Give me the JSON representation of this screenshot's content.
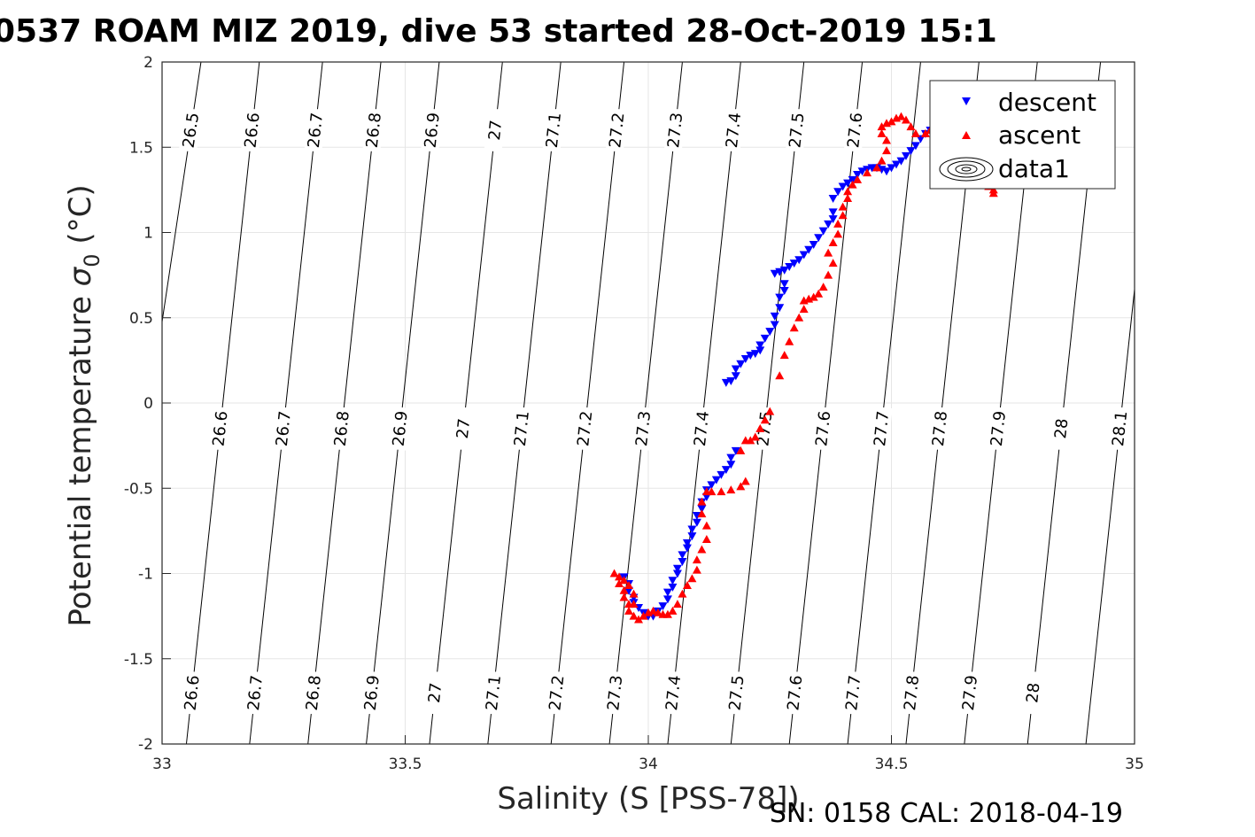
{
  "title": "0537 ROAM MIZ 2019, dive 53 started 28-Oct-2019 15:1",
  "footer": "SN: 0158  CAL: 2018-04-19",
  "chart_data": {
    "type": "scatter",
    "xlabel": "Salinity (S [PSS-78])",
    "ylabel_main": "Potential temperature ",
    "ylabel_sigma": "σ",
    "ylabel_sub": "0",
    "ylabel_unit": " (°C)",
    "xlim": [
      33,
      35
    ],
    "ylim": [
      -2,
      2
    ],
    "xticks": [
      "33",
      "33.5",
      "34",
      "34.5",
      "35"
    ],
    "yticks": [
      "2",
      "1.5",
      "1",
      "0.5",
      "0",
      "-0.5",
      "-1",
      "-1.5",
      "-2"
    ],
    "grid": true,
    "legend_position": "top-right",
    "legend": [
      "descent",
      "ascent",
      "data1"
    ],
    "colors": {
      "descent": "#0000ff",
      "ascent": "#ff0000",
      "contour": "#000000",
      "grid": "#e6e6e6"
    },
    "contours": [
      {
        "level": "26.5",
        "s_at_tmin": 32.87,
        "s_at_tmax": 33.08
      },
      {
        "level": "26.6",
        "s_at_tmin": 33.05,
        "s_at_tmax": 33.2
      },
      {
        "level": "26.7",
        "s_at_tmin": 33.18,
        "s_at_tmax": 33.33
      },
      {
        "level": "26.8",
        "s_at_tmin": 33.3,
        "s_at_tmax": 33.45
      },
      {
        "level": "26.9",
        "s_at_tmin": 33.42,
        "s_at_tmax": 33.57
      },
      {
        "level": "27",
        "s_at_tmin": 33.55,
        "s_at_tmax": 33.7
      },
      {
        "level": "27.1",
        "s_at_tmin": 33.67,
        "s_at_tmax": 33.82
      },
      {
        "level": "27.2",
        "s_at_tmin": 33.8,
        "s_at_tmax": 33.95
      },
      {
        "level": "27.3",
        "s_at_tmin": 33.92,
        "s_at_tmax": 34.07
      },
      {
        "level": "27.4",
        "s_at_tmin": 34.04,
        "s_at_tmax": 34.19
      },
      {
        "level": "27.5",
        "s_at_tmin": 34.17,
        "s_at_tmax": 34.32
      },
      {
        "level": "27.6",
        "s_at_tmin": 34.29,
        "s_at_tmax": 34.44
      },
      {
        "level": "27.7",
        "s_at_tmin": 34.41,
        "s_at_tmax": 34.56
      },
      {
        "level": "27.8",
        "s_at_tmin": 34.53,
        "s_at_tmax": 34.68
      },
      {
        "level": "27.9",
        "s_at_tmin": 34.65,
        "s_at_tmax": 34.8
      },
      {
        "level": "28",
        "s_at_tmin": 34.78,
        "s_at_tmax": 34.93
      },
      {
        "level": "28.1",
        "s_at_tmin": 34.9,
        "s_at_tmax": 35.05
      }
    ],
    "contour_label_rows": [
      {
        "temperature": 1.6,
        "levels": [
          "26.5",
          "26.6",
          "26.7",
          "26.8",
          "26.9",
          "27",
          "27.1",
          "27.2",
          "27.3",
          "27.4",
          "27.5",
          "27.6",
          "28"
        ]
      },
      {
        "temperature": 0.0,
        "levels": [
          "26.5"
        ]
      },
      {
        "temperature": -0.15,
        "levels": [
          "26.6",
          "26.7",
          "26.8",
          "26.9",
          "27",
          "27.1",
          "27.2",
          "27.3",
          "27.4",
          "27.5",
          "27.6",
          "27.7",
          "27.8",
          "27.9",
          "28",
          "28.1"
        ]
      },
      {
        "temperature": -1.7,
        "levels": [
          "26.6",
          "26.7",
          "26.8",
          "26.9",
          "27",
          "27.1",
          "27.2",
          "27.3",
          "27.4",
          "27.5",
          "27.6",
          "27.7",
          "27.8",
          "27.9",
          "28"
        ]
      }
    ],
    "series": [
      {
        "name": "descent",
        "marker": "triangle-down",
        "points": [
          [
            33.95,
            -1.02
          ],
          [
            33.96,
            -1.06
          ],
          [
            33.96,
            -1.1
          ],
          [
            33.97,
            -1.14
          ],
          [
            33.97,
            -1.17
          ],
          [
            33.98,
            -1.2
          ],
          [
            33.99,
            -1.23
          ],
          [
            34.0,
            -1.25
          ],
          [
            34.01,
            -1.25
          ],
          [
            34.02,
            -1.22
          ],
          [
            34.03,
            -1.19
          ],
          [
            34.04,
            -1.15
          ],
          [
            34.04,
            -1.11
          ],
          [
            34.05,
            -1.08
          ],
          [
            34.05,
            -1.04
          ],
          [
            34.06,
            -1.0
          ],
          [
            34.06,
            -0.97
          ],
          [
            34.07,
            -0.93
          ],
          [
            34.07,
            -0.89
          ],
          [
            34.08,
            -0.85
          ],
          [
            34.08,
            -0.82
          ],
          [
            34.09,
            -0.78
          ],
          [
            34.09,
            -0.74
          ],
          [
            34.1,
            -0.7
          ],
          [
            34.1,
            -0.66
          ],
          [
            34.11,
            -0.62
          ],
          [
            34.11,
            -0.58
          ],
          [
            34.12,
            -0.55
          ],
          [
            34.12,
            -0.51
          ],
          [
            34.13,
            -0.48
          ],
          [
            34.14,
            -0.45
          ],
          [
            34.15,
            -0.42
          ],
          [
            34.16,
            -0.39
          ],
          [
            34.17,
            -0.36
          ],
          [
            34.17,
            -0.32
          ],
          [
            34.18,
            -0.28
          ],
          [
            34.16,
            0.12
          ],
          [
            34.17,
            0.13
          ],
          [
            34.18,
            0.16
          ],
          [
            34.18,
            0.2
          ],
          [
            34.19,
            0.23
          ],
          [
            34.2,
            0.26
          ],
          [
            34.21,
            0.28
          ],
          [
            34.22,
            0.29
          ],
          [
            34.23,
            0.31
          ],
          [
            34.23,
            0.34
          ],
          [
            34.24,
            0.38
          ],
          [
            34.25,
            0.42
          ],
          [
            34.26,
            0.46
          ],
          [
            34.26,
            0.51
          ],
          [
            34.27,
            0.56
          ],
          [
            34.27,
            0.62
          ],
          [
            34.28,
            0.66
          ],
          [
            34.28,
            0.7
          ],
          [
            34.26,
            0.76
          ],
          [
            34.27,
            0.77
          ],
          [
            34.28,
            0.78
          ],
          [
            34.29,
            0.8
          ],
          [
            34.3,
            0.82
          ],
          [
            34.31,
            0.84
          ],
          [
            34.32,
            0.87
          ],
          [
            34.33,
            0.9
          ],
          [
            34.34,
            0.93
          ],
          [
            34.35,
            0.97
          ],
          [
            34.36,
            1.01
          ],
          [
            34.37,
            1.05
          ],
          [
            34.38,
            1.08
          ],
          [
            34.38,
            1.12
          ],
          [
            34.38,
            1.2
          ],
          [
            34.39,
            1.24
          ],
          [
            34.4,
            1.27
          ],
          [
            34.41,
            1.29
          ],
          [
            34.42,
            1.31
          ],
          [
            34.43,
            1.34
          ],
          [
            34.44,
            1.36
          ],
          [
            34.45,
            1.37
          ],
          [
            34.46,
            1.38
          ],
          [
            34.47,
            1.38
          ],
          [
            34.48,
            1.37
          ],
          [
            34.49,
            1.36
          ],
          [
            34.5,
            1.38
          ],
          [
            34.51,
            1.4
          ],
          [
            34.52,
            1.42
          ],
          [
            34.53,
            1.45
          ],
          [
            34.54,
            1.48
          ],
          [
            34.55,
            1.51
          ],
          [
            34.56,
            1.55
          ],
          [
            34.57,
            1.58
          ],
          [
            34.58,
            1.6
          ],
          [
            34.6,
            1.62
          ],
          [
            34.61,
            1.63
          ]
        ]
      },
      {
        "name": "ascent",
        "marker": "triangle-up",
        "points": [
          [
            34.71,
            1.23
          ],
          [
            34.71,
            1.25
          ],
          [
            34.7,
            1.27
          ],
          [
            34.7,
            1.3
          ],
          [
            34.69,
            1.33
          ],
          [
            34.59,
            1.62
          ],
          [
            34.58,
            1.6
          ],
          [
            34.57,
            1.58
          ],
          [
            34.55,
            1.58
          ],
          [
            34.54,
            1.62
          ],
          [
            34.53,
            1.66
          ],
          [
            34.52,
            1.68
          ],
          [
            34.51,
            1.67
          ],
          [
            34.5,
            1.65
          ],
          [
            34.49,
            1.64
          ],
          [
            34.48,
            1.62
          ],
          [
            34.48,
            1.58
          ],
          [
            34.49,
            1.54
          ],
          [
            34.49,
            1.48
          ],
          [
            34.48,
            1.42
          ],
          [
            34.47,
            1.38
          ],
          [
            34.45,
            1.35
          ],
          [
            34.43,
            1.31
          ],
          [
            34.42,
            1.28
          ],
          [
            34.41,
            1.24
          ],
          [
            34.41,
            1.2
          ],
          [
            34.4,
            1.15
          ],
          [
            34.4,
            1.1
          ],
          [
            34.39,
            1.05
          ],
          [
            34.39,
            0.99
          ],
          [
            34.38,
            0.94
          ],
          [
            34.37,
            0.88
          ],
          [
            34.38,
            0.82
          ],
          [
            34.37,
            0.75
          ],
          [
            34.36,
            0.68
          ],
          [
            34.35,
            0.64
          ],
          [
            34.34,
            0.62
          ],
          [
            34.33,
            0.61
          ],
          [
            34.32,
            0.6
          ],
          [
            34.32,
            0.55
          ],
          [
            34.31,
            0.5
          ],
          [
            34.3,
            0.44
          ],
          [
            34.29,
            0.36
          ],
          [
            34.28,
            0.28
          ],
          [
            34.27,
            0.16
          ],
          [
            34.25,
            -0.05
          ],
          [
            34.24,
            -0.1
          ],
          [
            34.23,
            -0.15
          ],
          [
            34.22,
            -0.2
          ],
          [
            34.21,
            -0.22
          ],
          [
            34.2,
            -0.22
          ],
          [
            34.19,
            -0.28
          ],
          [
            34.2,
            -0.46
          ],
          [
            34.19,
            -0.49
          ],
          [
            34.17,
            -0.51
          ],
          [
            34.15,
            -0.52
          ],
          [
            34.13,
            -0.52
          ],
          [
            34.12,
            -0.52
          ],
          [
            34.11,
            -0.58
          ],
          [
            34.11,
            -0.65
          ],
          [
            34.12,
            -0.72
          ],
          [
            34.12,
            -0.8
          ],
          [
            34.11,
            -0.86
          ],
          [
            34.1,
            -0.92
          ],
          [
            34.1,
            -0.98
          ],
          [
            34.09,
            -1.03
          ],
          [
            34.08,
            -1.07
          ],
          [
            34.07,
            -1.12
          ],
          [
            34.06,
            -1.18
          ],
          [
            34.05,
            -1.22
          ],
          [
            34.04,
            -1.24
          ],
          [
            34.03,
            -1.24
          ],
          [
            34.02,
            -1.23
          ],
          [
            34.01,
            -1.22
          ],
          [
            34.0,
            -1.23
          ],
          [
            33.99,
            -1.25
          ],
          [
            33.98,
            -1.27
          ],
          [
            33.97,
            -1.25
          ],
          [
            33.96,
            -1.22
          ],
          [
            33.96,
            -1.18
          ],
          [
            33.95,
            -1.14
          ],
          [
            33.95,
            -1.1
          ],
          [
            33.94,
            -1.06
          ],
          [
            33.94,
            -1.02
          ],
          [
            33.93,
            -1.0
          ],
          [
            33.95,
            -1.04
          ],
          [
            33.96,
            -1.07
          ],
          [
            33.97,
            -1.12
          ],
          [
            33.97,
            -1.18
          ]
        ]
      }
    ]
  }
}
